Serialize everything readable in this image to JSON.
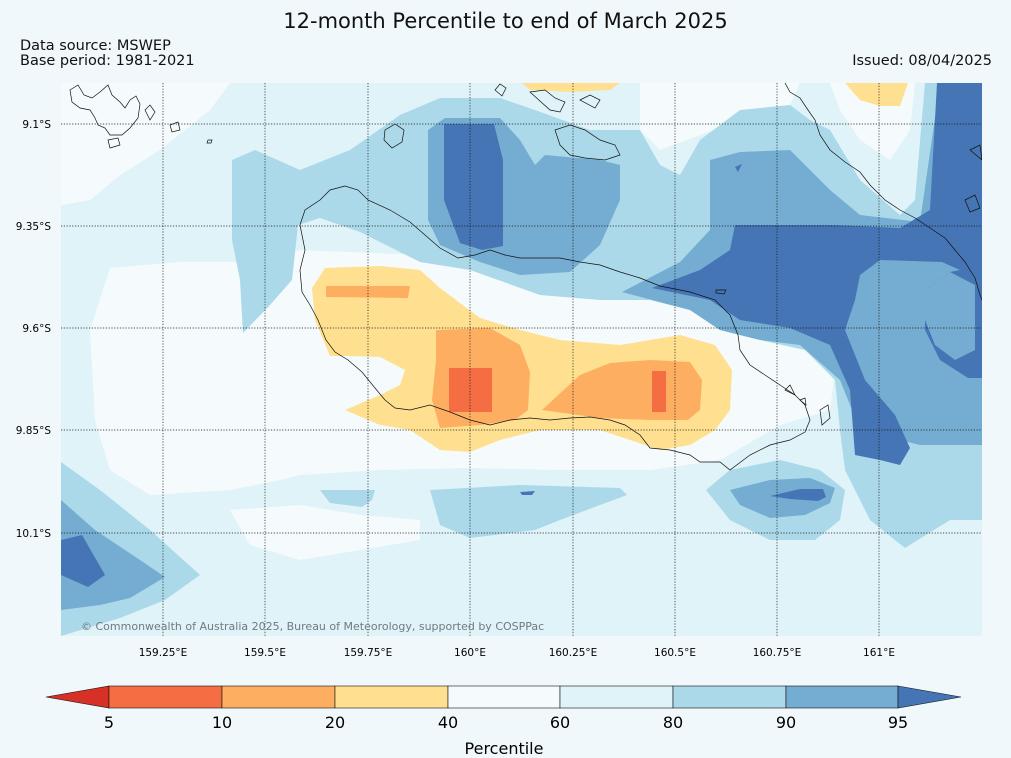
{
  "title": "12-month Percentile to end of March 2025",
  "data_source": "Data source: MSWEP",
  "base_period": "Base period: 1981-2021",
  "issued": "Issued: 08/04/2025",
  "credit": "© Commonwealth of Australia 2025, Bureau of Meteorology, supported by COSPPac",
  "lat_labels": [
    "9.1°S",
    "9.35°S",
    "9.6°S",
    "9.85°S",
    "10.1°S"
  ],
  "lon_labels": [
    "159.25°E",
    "159.5°E",
    "159.75°E",
    "160°E",
    "160.25°E",
    "160.5°E",
    "160.75°E",
    "161°E"
  ],
  "colorbar": {
    "title": "Percentile",
    "ticks": [
      "5",
      "10",
      "20",
      "40",
      "60",
      "80",
      "90",
      "95"
    ],
    "colors": {
      "below_5": "#d73027",
      "5_10": "#f46d43",
      "10_20": "#fdae61",
      "20_40": "#fee090",
      "40_60": "#f5fbfc",
      "60_80": "#e0f3f8",
      "80_90": "#abd9e9",
      "90_95": "#74add1",
      "above_95": "#4575b4"
    }
  }
}
